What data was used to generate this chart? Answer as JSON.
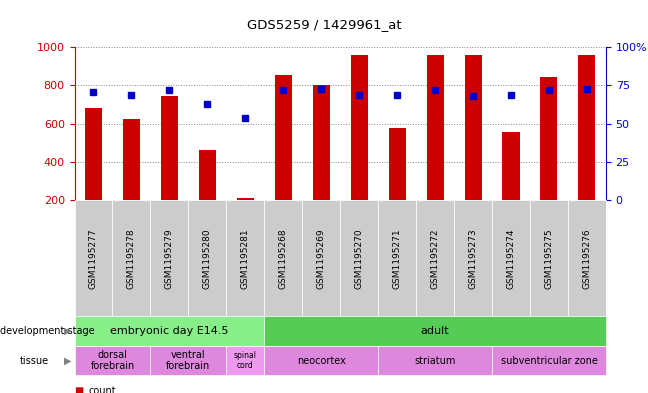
{
  "title": "GDS5259 / 1429961_at",
  "samples": [
    "GSM1195277",
    "GSM1195278",
    "GSM1195279",
    "GSM1195280",
    "GSM1195281",
    "GSM1195268",
    "GSM1195269",
    "GSM1195270",
    "GSM1195271",
    "GSM1195272",
    "GSM1195273",
    "GSM1195274",
    "GSM1195275",
    "GSM1195276"
  ],
  "counts": [
    680,
    625,
    745,
    465,
    215,
    855,
    805,
    960,
    580,
    960,
    960,
    555,
    845,
    960
  ],
  "percentile_ranks": [
    71,
    69,
    72,
    63,
    54,
    72,
    73,
    69,
    69,
    72,
    68,
    69,
    72,
    73
  ],
  "bar_color": "#cc0000",
  "dot_color": "#0000cc",
  "ylim_left": [
    200,
    1000
  ],
  "ylim_right": [
    0,
    100
  ],
  "yticks_left": [
    200,
    400,
    600,
    800,
    1000
  ],
  "yticks_right": [
    0,
    25,
    50,
    75,
    100
  ],
  "dev_stage_embryonic": {
    "label": "embryonic day E14.5",
    "start": 0,
    "end": 5,
    "color": "#88ee88"
  },
  "dev_stage_adult": {
    "label": "adult",
    "start": 5,
    "end": 14,
    "color": "#55cc55"
  },
  "tissue_groups": [
    {
      "label": "dorsal\nforebrain",
      "start": 0,
      "end": 2,
      "color": "#dd88dd"
    },
    {
      "label": "ventral\nforebrain",
      "start": 2,
      "end": 4,
      "color": "#dd88dd"
    },
    {
      "label": "spinal\ncord",
      "start": 4,
      "end": 5,
      "color": "#ee99ee"
    },
    {
      "label": "neocortex",
      "start": 5,
      "end": 8,
      "color": "#dd88dd"
    },
    {
      "label": "striatum",
      "start": 8,
      "end": 11,
      "color": "#dd88dd"
    },
    {
      "label": "subventricular zone",
      "start": 11,
      "end": 14,
      "color": "#dd88dd"
    }
  ],
  "legend_count_color": "#cc0000",
  "legend_dot_color": "#0000cc",
  "bar_width": 0.45,
  "background_color": "#ffffff",
  "grid_color": "#888888",
  "xticklabel_bg": "#cccccc",
  "plot_bg": "#ffffff"
}
